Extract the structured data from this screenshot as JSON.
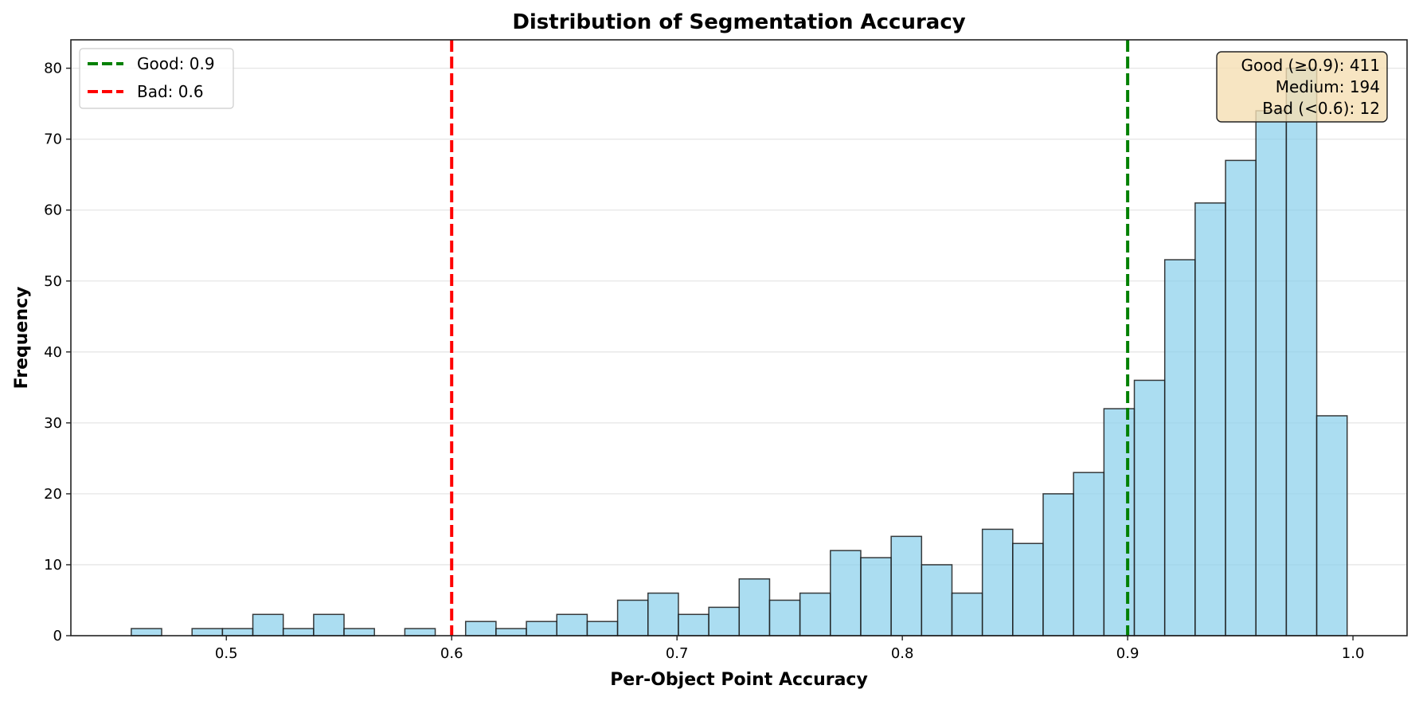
{
  "chart_data": {
    "type": "bar",
    "subtype": "histogram",
    "title": "Distribution of Segmentation Accuracy",
    "xlabel": "Per-Object Point Accuracy",
    "ylabel": "Frequency",
    "xlim": [
      0.431,
      1.024
    ],
    "ylim": [
      0,
      84
    ],
    "xticks": [
      0.5,
      0.6,
      0.7,
      0.8,
      0.9,
      1.0
    ],
    "xtick_labels": [
      "0.5",
      "0.6",
      "0.7",
      "0.8",
      "0.9",
      "1.0"
    ],
    "yticks": [
      0,
      10,
      20,
      30,
      40,
      50,
      60,
      70,
      80
    ],
    "ytick_labels": [
      "0",
      "10",
      "20",
      "30",
      "40",
      "50",
      "60",
      "70",
      "80"
    ],
    "grid": "y",
    "bin_start": 0.4578,
    "bin_width": 0.01349,
    "counts": [
      1,
      0,
      1,
      1,
      3,
      1,
      3,
      1,
      0,
      1,
      0,
      2,
      1,
      2,
      3,
      2,
      5,
      6,
      3,
      4,
      8,
      5,
      6,
      12,
      11,
      14,
      10,
      6,
      15,
      13,
      20,
      23,
      32,
      36,
      53,
      61,
      67,
      74,
      80,
      31
    ],
    "bar_color": "#87CEEB",
    "bar_edge_color": "#000000",
    "threshold_lines": [
      {
        "name": "Good: 0.9",
        "x": 0.9,
        "color": "#008000",
        "style": "dashed"
      },
      {
        "name": "Bad: 0.6",
        "x": 0.6,
        "color": "#ff0000",
        "style": "dashed"
      }
    ],
    "legend": {
      "position": "upper left",
      "entries": [
        {
          "label": "Good: 0.9",
          "color": "#008000"
        },
        {
          "label": "Bad: 0.6",
          "color": "#ff0000"
        }
      ]
    },
    "annotation": {
      "position": "upper right",
      "background": "#F5DEB3",
      "lines": [
        "Good (≥0.9): 411",
        "Medium: 194",
        "Bad (<0.6): 12"
      ]
    },
    "summary": {
      "good": 411,
      "medium": 194,
      "bad": 12
    }
  }
}
